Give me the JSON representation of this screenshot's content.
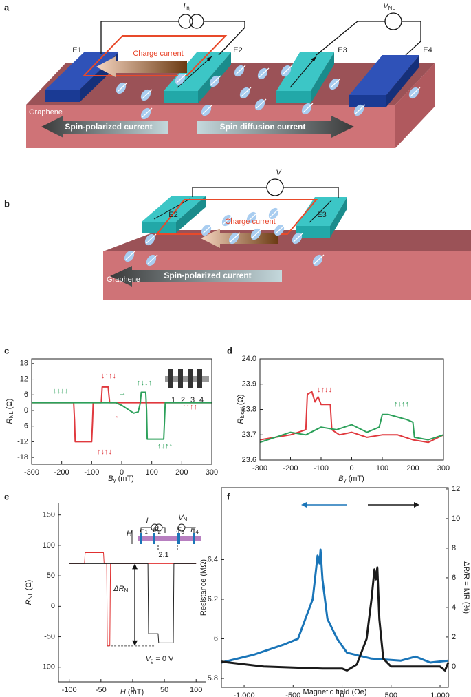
{
  "diagrams": {
    "a": {
      "letter": "a",
      "source": {
        "main": "I",
        "sub": "inj"
      },
      "meter": {
        "main": "V",
        "sub": "NL"
      },
      "electrodes": [
        "E1",
        "E2",
        "E3",
        "E4"
      ],
      "charge": "Charge current",
      "material": "Graphene",
      "left_arrow": "Spin-polarized current",
      "right_arrow": "Spin diffusion current"
    },
    "b": {
      "letter": "b",
      "meter": "V",
      "electrodes": [
        "E2",
        "E3"
      ],
      "charge": "Charge current",
      "material": "Graphene",
      "arrow": "Spin-polarized current"
    }
  },
  "chart_data": [
    {
      "type": "line",
      "panel": "c",
      "x_label": {
        "main": "B",
        "sub": "y",
        "tail": " (mT)"
      },
      "y_label": {
        "main": "R",
        "sub": "NL",
        "tail": " (Ω)"
      },
      "xlim": [
        -300,
        300
      ],
      "xticks": [
        -300,
        -200,
        -100,
        0,
        100,
        200,
        300
      ],
      "ylim": [
        -20.6,
        19.8
      ],
      "yticks": [
        -18,
        -12,
        -6,
        0,
        6,
        12,
        18
      ],
      "series": [
        {
          "color": "#e0393e",
          "x": [
            -300,
            -160,
            -157,
            -155,
            -100,
            -97,
            -95,
            -68,
            -65,
            -45,
            -42,
            -40,
            300
          ],
          "values": [
            3,
            3,
            -4,
            -12,
            -12,
            -4,
            3,
            3,
            9,
            9,
            5,
            3,
            3
          ]
        },
        {
          "color": "#2ca05a",
          "x": [
            -300,
            -20,
            0,
            20,
            40,
            55,
            62,
            65,
            80,
            83,
            85,
            140,
            143,
            145,
            300
          ],
          "values": [
            3,
            3,
            2,
            0.5,
            -1,
            -0.5,
            3,
            7,
            7,
            0,
            -11,
            -11,
            -3,
            3,
            3
          ]
        }
      ],
      "annotations": [
        {
          "text": "↓↓↓↓",
          "color": "#2ca05a"
        },
        {
          "text": "↓↑↑↓",
          "color": "#e0393e"
        },
        {
          "text": "↑↓↓↑",
          "color": "#2ca05a"
        },
        {
          "text": "→",
          "color": "#2ca05a"
        },
        {
          "text": "←",
          "color": "#e0393e"
        },
        {
          "text": "↑↓↑↓",
          "color": "#e0393e"
        },
        {
          "text": "↑↓↑↑",
          "color": "#2ca05a"
        },
        {
          "text": "↑↑↑↑",
          "color": "#e0393e"
        },
        {
          "text": "1"
        },
        {
          "text": "2"
        },
        {
          "text": "3"
        },
        {
          "text": "4"
        }
      ]
    },
    {
      "type": "line",
      "panel": "d",
      "x_label": {
        "main": "B",
        "sub": "y",
        "tail": " (mT)"
      },
      "y_label": {
        "main": "R",
        "sub": "local",
        "tail": " (Ω)"
      },
      "xlim": [
        -300,
        300
      ],
      "xticks": [
        -300,
        -200,
        -100,
        0,
        100,
        200,
        300
      ],
      "ylim": [
        23.6,
        24.0
      ],
      "yticks": [
        23.6,
        23.7,
        23.8,
        23.9,
        {
          "value": 24,
          "label": "24.0"
        }
      ],
      "series": [
        {
          "color": "#e0393e",
          "x": [
            -300,
            -250,
            -200,
            -150,
            -145,
            -130,
            -120,
            -110,
            -100,
            -90,
            -70,
            -65,
            -40,
            0,
            50,
            100,
            150,
            200,
            250,
            300
          ],
          "values": [
            23.68,
            23.69,
            23.7,
            23.72,
            23.86,
            23.87,
            23.83,
            23.85,
            23.82,
            23.82,
            23.82,
            23.72,
            23.7,
            23.71,
            23.69,
            23.7,
            23.7,
            23.68,
            23.67,
            23.7
          ]
        },
        {
          "color": "#2ca05a",
          "x": [
            -300,
            -250,
            -200,
            -150,
            -100,
            -50,
            0,
            50,
            90,
            100,
            120,
            150,
            180,
            200,
            205,
            250,
            300
          ],
          "values": [
            23.67,
            23.69,
            23.71,
            23.7,
            23.73,
            23.72,
            23.74,
            23.71,
            23.73,
            23.78,
            23.78,
            23.77,
            23.76,
            23.75,
            23.69,
            23.68,
            23.7
          ]
        }
      ],
      "annotations": [
        {
          "text": "↓↑↓↓",
          "color": "#e0393e"
        },
        {
          "text": "↑↓↑↑",
          "color": "#2ca05a"
        }
      ]
    },
    {
      "type": "line",
      "panel": "e",
      "x_label": {
        "main": "H",
        "tail": " (mT)"
      },
      "y_label": {
        "main": "R",
        "sub": "NL",
        "tail": " (Ω)"
      },
      "xlim": [
        -117,
        116
      ],
      "xticks": [
        -100,
        -50,
        0,
        50,
        100
      ],
      "ylim": [
        -124,
        170
      ],
      "yticks": [
        -100,
        -50,
        0,
        50,
        100,
        150
      ],
      "series": [
        {
          "color": "#e03030",
          "x": [
            -100,
            -76,
            -75,
            -46,
            -45,
            -41,
            -40,
            -36,
            -35,
            100
          ],
          "values": [
            70,
            70,
            88,
            88,
            70,
            70,
            -65,
            -65,
            70,
            70
          ]
        },
        {
          "color": "#222222",
          "x": [
            -100,
            24,
            25,
            40,
            41,
            62,
            64,
            65,
            100
          ],
          "values": [
            70,
            70,
            -45,
            -45,
            -60,
            -60,
            -60,
            70,
            70
          ]
        }
      ],
      "annotations": [
        {
          "text": {
            "main": "ΔR",
            "sub": "NL"
          }
        },
        {
          "text": {
            "main": "V",
            "sub": "g",
            "tail": " = 0 V"
          }
        },
        {
          "text": {
            "main": "I"
          }
        },
        {
          "text": {
            "main": "V",
            "sub": "NL"
          }
        },
        {
          "text": {
            "main": "H"
          }
        },
        {
          "text": {
            "main": "E",
            "sub": "1"
          }
        },
        {
          "text": {
            "main": "E",
            "sub": "2"
          }
        },
        {
          "text": {
            "main": "E",
            "sub": "3"
          }
        },
        {
          "text": {
            "main": "E",
            "sub": "4"
          }
        },
        {
          "text": "2.1"
        }
      ]
    },
    {
      "type": "line",
      "panel": "f",
      "x_label": "Magnetic field (Oe)",
      "y_label": "Resistance (MΩ)",
      "y2_label": "ΔR/R = MR (%)",
      "xlim": [
        -1232,
        1084
      ],
      "xticks": [
        {
          "value": -1000,
          "label": "-1,000"
        },
        -500,
        0,
        500,
        {
          "value": 1000,
          "label": "1,000"
        }
      ],
      "ylim": [
        5.755,
        6.763
      ],
      "yticks": [
        5.8,
        6.0,
        6.2,
        6.4
      ],
      "y2lim": [
        -1.4,
        12.09
      ],
      "y2ticks": [
        0,
        2,
        4,
        6,
        8,
        10,
        12
      ],
      "series": [
        {
          "color": "#1a75b8",
          "x": [
            -1232,
            -900,
            -600,
            -450,
            -300,
            -250,
            -230,
            -220,
            -200,
            -150,
            -50,
            50,
            300,
            600,
            750,
            900,
            1084
          ],
          "values": [
            5.88,
            5.92,
            5.97,
            6.0,
            6.2,
            6.42,
            6.38,
            6.45,
            6.3,
            6.1,
            6.0,
            5.93,
            5.9,
            5.89,
            5.91,
            5.88,
            5.89
          ]
        },
        {
          "color": "#1a1a1a",
          "x": [
            -1232,
            -800,
            -200,
            0,
            50,
            150,
            250,
            300,
            330,
            345,
            360,
            380,
            420,
            500,
            1000,
            1050,
            1084
          ],
          "values": [
            5.885,
            5.86,
            5.85,
            5.85,
            5.84,
            5.87,
            6.0,
            6.2,
            6.35,
            6.3,
            6.36,
            6.1,
            5.9,
            5.86,
            5.86,
            5.84,
            5.88
          ]
        }
      ],
      "annotations": []
    }
  ]
}
